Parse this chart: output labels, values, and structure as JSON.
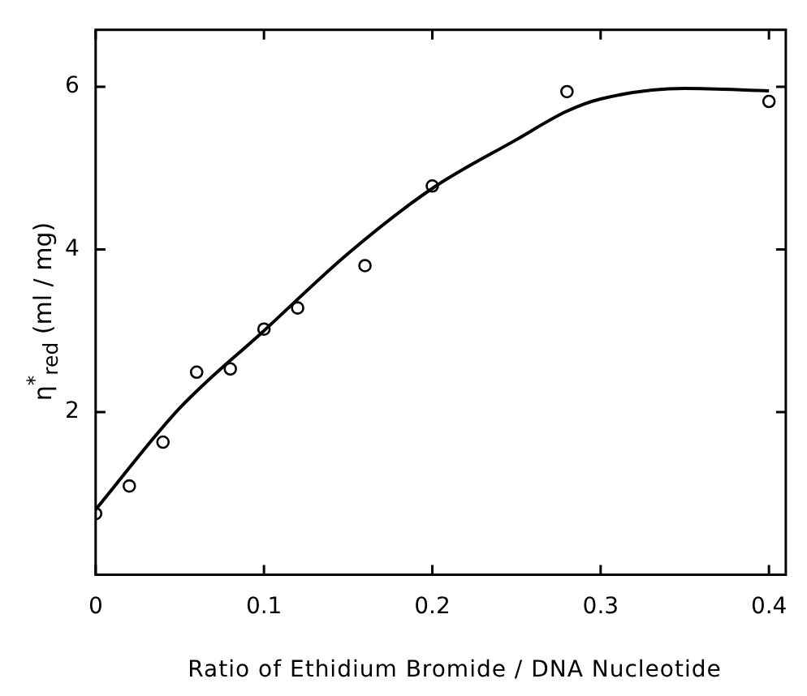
{
  "chart_data": {
    "type": "scatter",
    "xlabel": "Ratio of Ethidium Bromide / DNA Nucleotide",
    "ylabel": "η$^{*}$$_{red}$ (ml / mg)",
    "xlim": [
      0,
      0.41
    ],
    "ylim": [
      0,
      6.7
    ],
    "xticks": [
      0,
      0.1,
      0.2,
      0.3,
      0.4
    ],
    "yticks": [
      2,
      4,
      6
    ],
    "grid": false,
    "legend": false,
    "marker": "circle",
    "series": [
      {
        "color": "#000000",
        "x": [
          0,
          0.02,
          0.04,
          0.06,
          0.08,
          0.1,
          0.12,
          0.16,
          0.2,
          0.28,
          0.4
        ],
        "values": [
          0.75,
          1.09,
          1.63,
          2.49,
          2.53,
          3.02,
          3.28,
          3.8,
          4.78,
          5.94,
          5.82
        ]
      },
      {
        "type": "line",
        "color": "#000000",
        "marker": "none",
        "line_style": "solid",
        "x": [
          0,
          0.05,
          0.1,
          0.15,
          0.2,
          0.25,
          0.28,
          0.3,
          0.35,
          0.4
        ],
        "values": [
          0.8,
          2.05,
          3.0,
          3.95,
          4.75,
          5.35,
          5.7,
          5.85,
          5.98,
          5.95
        ]
      }
    ]
  }
}
